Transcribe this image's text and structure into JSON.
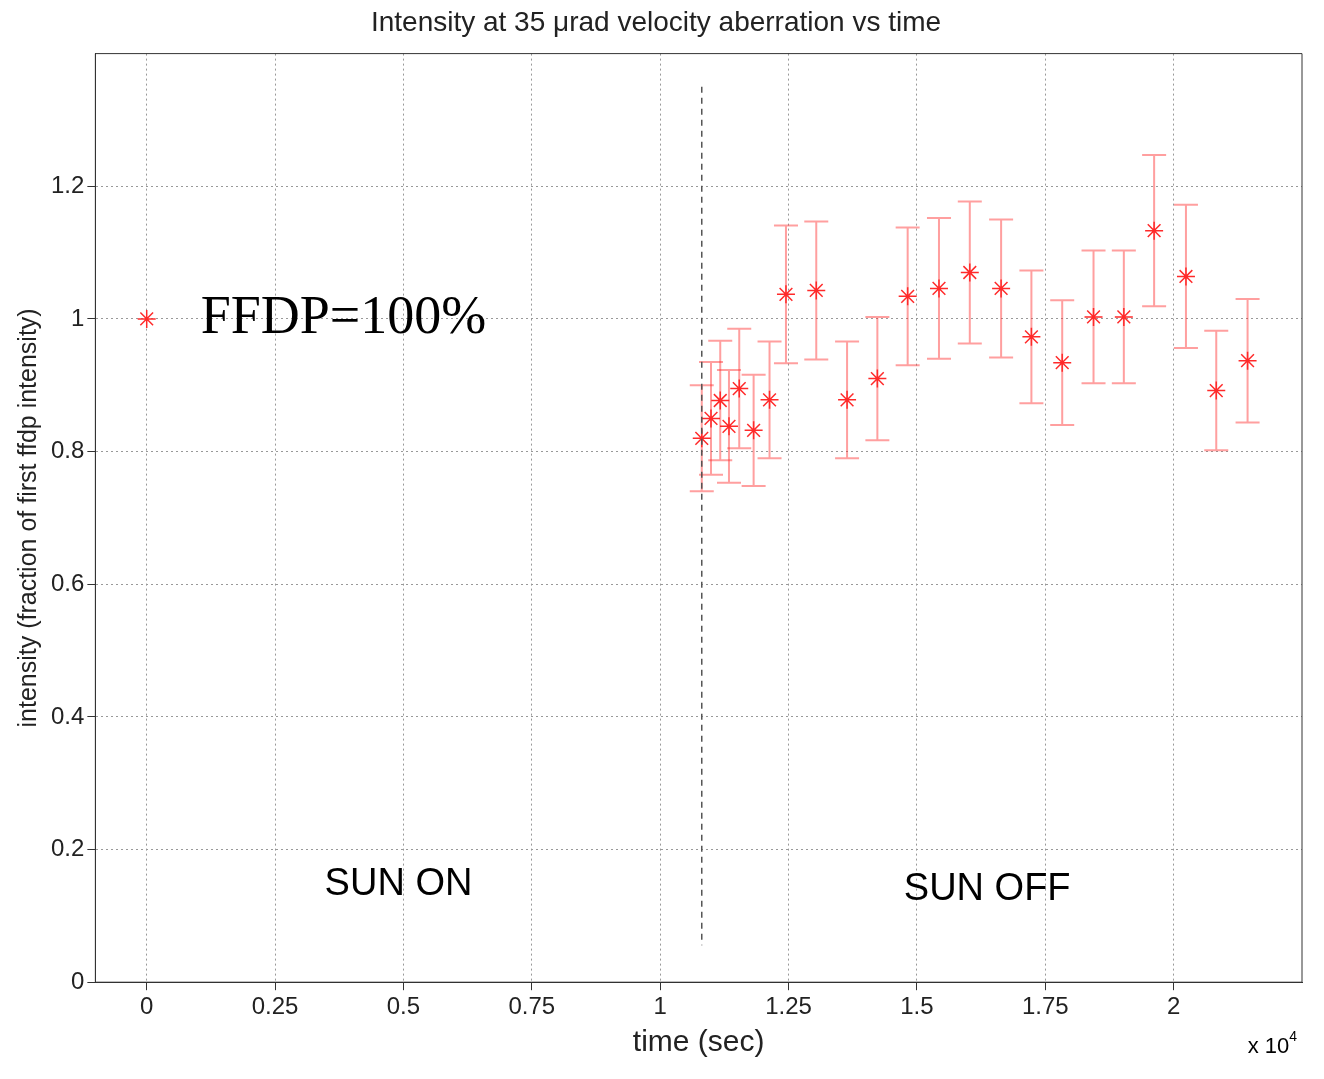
{
  "chart_data": {
    "type": "scatter",
    "title": "Intensity at 35 μrad velocity aberration vs time",
    "xlabel": "time (sec)",
    "ylabel": "intensity (fraction of first ffdp intensity)",
    "x": [
      0,
      1.081,
      1.099,
      1.117,
      1.134,
      1.154,
      1.182,
      1.213,
      1.245,
      1.304,
      1.364,
      1.423,
      1.482,
      1.543,
      1.603,
      1.664,
      1.723,
      1.783,
      1.844,
      1.903,
      1.962,
      2.024,
      2.083,
      2.144
    ],
    "series": [
      {
        "color": "#ff2a2a",
        "values": [
          1.0,
          0.82,
          0.85,
          0.877,
          0.838,
          0.895,
          0.832,
          0.878,
          1.037,
          1.043,
          0.878,
          0.91,
          1.034,
          1.046,
          1.07,
          1.046,
          0.973,
          0.934,
          1.003,
          1.003,
          1.133,
          1.064,
          0.892,
          0.937
        ],
        "errors": [
          null,
          0.08,
          0.085,
          0.09,
          0.085,
          0.09,
          0.084,
          0.088,
          0.104,
          0.104,
          0.088,
          0.093,
          0.104,
          0.106,
          0.107,
          0.104,
          0.1,
          0.094,
          0.1,
          0.1,
          0.114,
          0.108,
          0.09,
          0.093
        ]
      }
    ],
    "xlim": [
      -0.1,
      2.25
    ],
    "ylim": [
      0,
      1.4
    ],
    "xticks": [
      0,
      0.25,
      0.5,
      0.75,
      1,
      1.25,
      1.5,
      1.75,
      2
    ],
    "yticks": [
      0,
      0.2,
      0.4,
      0.6,
      0.8,
      1,
      1.2
    ],
    "grid": true,
    "marker": "cross",
    "legend": false,
    "ref_lines": [
      {
        "axis": "x",
        "value": 1.081,
        "line_style": "dashed",
        "color": "#555555"
      }
    ],
    "annotations": [
      {
        "text": "FFDP=100%",
        "x": 0,
        "y": 1
      },
      "SUN ON",
      "SUN OFF",
      "x 10$^{4}$"
    ]
  }
}
